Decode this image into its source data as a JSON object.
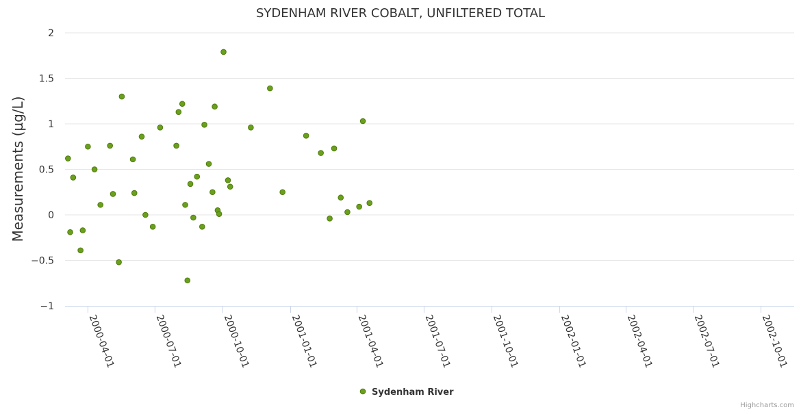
{
  "chart_data": {
    "type": "scatter",
    "title": "SYDENHAM RIVER COBALT, UNFILTERED TOTAL",
    "ylabel": "Measurements (µg/L)",
    "xlabel": "",
    "ylim": [
      -1,
      2
    ],
    "xlim": [
      "2000-03-01",
      "2002-11-15"
    ],
    "yticks": [
      -1,
      -0.5,
      0,
      0.5,
      1,
      1.5,
      2
    ],
    "ytick_labels": [
      "−1",
      "−0.5",
      "0",
      "0.5",
      "1",
      "1.5",
      "2"
    ],
    "xticks": [
      "2000-04-01",
      "2000-07-01",
      "2000-10-01",
      "2001-01-01",
      "2001-04-01",
      "2001-07-01",
      "2001-10-01",
      "2002-01-01",
      "2002-04-01",
      "2002-07-01",
      "2002-10-01"
    ],
    "grid": true,
    "legend_position": "bottom-center",
    "marker_color": "#6aa01c",
    "marker_edge_color": "#4f7a0e",
    "series": [
      {
        "name": "Sydenham River",
        "x": [
          "2000-03-05",
          "2000-03-08",
          "2000-03-12",
          "2000-03-22",
          "2000-03-25",
          "2000-04-01",
          "2000-04-10",
          "2000-04-18",
          "2000-05-01",
          "2000-05-05",
          "2000-05-13",
          "2000-05-17",
          "2000-06-01",
          "2000-06-03",
          "2000-06-13",
          "2000-06-18",
          "2000-06-28",
          "2000-07-08",
          "2000-07-30",
          "2000-08-02",
          "2000-08-07",
          "2000-08-11",
          "2000-08-14",
          "2000-08-18",
          "2000-08-22",
          "2000-08-27",
          "2000-09-03",
          "2000-09-06",
          "2000-09-12",
          "2000-09-17",
          "2000-09-20",
          "2000-09-24",
          "2000-09-26",
          "2000-10-02",
          "2000-10-08",
          "2000-10-11",
          "2000-11-08",
          "2000-12-04",
          "2000-12-21",
          "2001-01-22",
          "2001-02-11",
          "2001-02-23",
          "2001-03-01",
          "2001-03-10",
          "2001-03-19",
          "2001-04-04",
          "2001-04-09",
          "2001-04-18"
        ],
        "y": [
          0.62,
          -0.19,
          0.41,
          -0.39,
          -0.17,
          0.75,
          0.5,
          0.11,
          0.76,
          0.23,
          -0.52,
          1.3,
          0.61,
          0.24,
          0.86,
          0.0,
          -0.13,
          0.96,
          0.76,
          1.13,
          1.22,
          0.11,
          -0.72,
          0.34,
          -0.03,
          0.42,
          -0.13,
          0.99,
          0.56,
          0.25,
          1.19,
          0.05,
          0.01,
          1.79,
          0.38,
          0.31,
          0.96,
          1.39,
          0.25,
          0.87,
          0.68,
          -0.04,
          0.73,
          0.19,
          0.03,
          0.09,
          1.03,
          0.13
        ]
      }
    ]
  },
  "credit": "Highcharts.com"
}
